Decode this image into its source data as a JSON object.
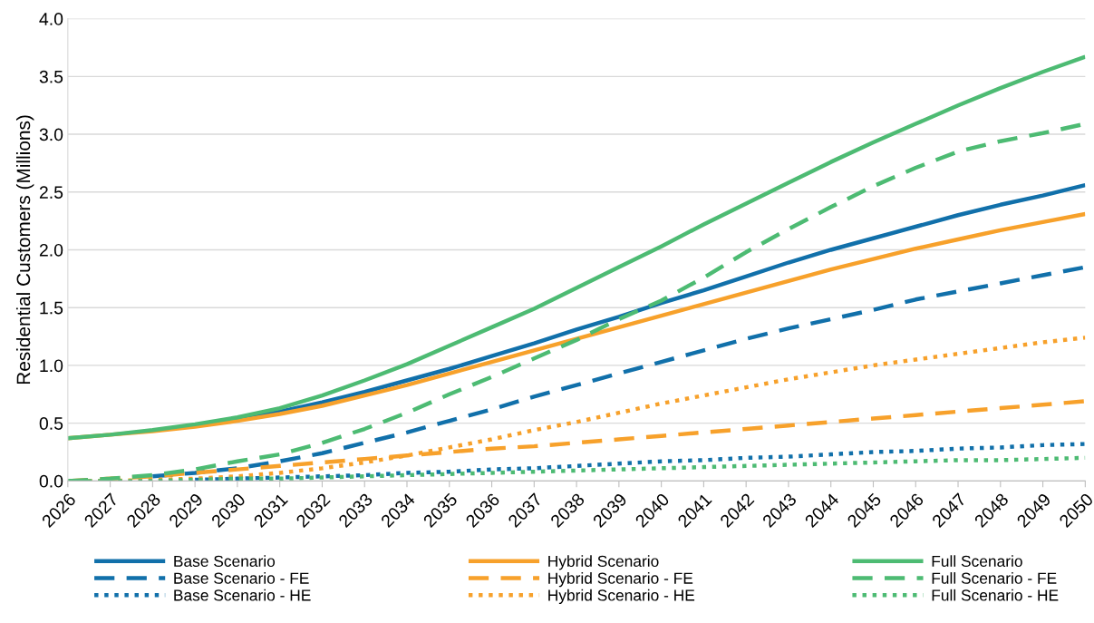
{
  "chart_data": {
    "type": "line",
    "ylabel": "Residential Customers (Millions)",
    "categories": [
      "2026",
      "2027",
      "2028",
      "2029",
      "2030",
      "2031",
      "2032",
      "2033",
      "2034",
      "2035",
      "2036",
      "2037",
      "2038",
      "2039",
      "2040",
      "2041",
      "2042",
      "2043",
      "2044",
      "2045",
      "2046",
      "2047",
      "2048",
      "2049",
      "2050"
    ],
    "ylim": [
      0,
      4
    ],
    "yticks": [
      {
        "value": 0,
        "label": "0.0"
      },
      {
        "value": 0.5,
        "label": "0.5"
      },
      {
        "value": 1,
        "label": "1.0"
      },
      {
        "value": 1.5,
        "label": "1.5"
      },
      {
        "value": 2,
        "label": "2.0"
      },
      {
        "value": 2.5,
        "label": "2.5"
      },
      {
        "value": 3,
        "label": "3.0"
      },
      {
        "value": 3.5,
        "label": "3.5"
      },
      {
        "value": 4,
        "label": "4.0"
      }
    ],
    "grid": "y",
    "legend": "bottom",
    "marker": "none",
    "series": [
      {
        "name": "Base Scenario",
        "color": "#1170aa",
        "line_style": "solid",
        "values": [
          null,
          null,
          null,
          0.48,
          0.53,
          0.6,
          0.68,
          0.77,
          0.87,
          0.97,
          1.08,
          1.19,
          1.31,
          1.42,
          1.54,
          1.65,
          1.77,
          1.89,
          2.0,
          2.1,
          2.2,
          2.3,
          2.39,
          2.47,
          2.56
        ]
      },
      {
        "name": "Base Scenario - FE",
        "color": "#1170aa",
        "line_style": "dashed",
        "values": [
          null,
          null,
          0.04,
          0.07,
          0.11,
          0.17,
          0.24,
          0.33,
          0.42,
          0.52,
          0.62,
          0.73,
          0.83,
          0.93,
          1.03,
          1.13,
          1.23,
          1.32,
          1.4,
          1.48,
          1.57,
          1.64,
          1.71,
          1.78,
          1.85
        ]
      },
      {
        "name": "Base Scenario - HE",
        "color": "#1170aa",
        "line_style": "dotted",
        "values": [
          null,
          null,
          null,
          0.01,
          0.02,
          0.03,
          0.04,
          0.05,
          0.07,
          0.08,
          0.1,
          0.11,
          0.13,
          0.15,
          0.17,
          0.18,
          0.2,
          0.21,
          0.23,
          0.25,
          0.26,
          0.28,
          0.29,
          0.31,
          0.32
        ]
      },
      {
        "name": "Hybrid Scenario",
        "color": "#f7a12b",
        "line_style": "solid",
        "values": [
          0.37,
          0.4,
          0.43,
          0.47,
          0.52,
          0.58,
          0.65,
          0.74,
          0.83,
          0.93,
          1.03,
          1.13,
          1.23,
          1.33,
          1.43,
          1.53,
          1.63,
          1.73,
          1.83,
          1.92,
          2.01,
          2.09,
          2.17,
          2.24,
          2.31
        ]
      },
      {
        "name": "Hybrid Scenario - FE",
        "color": "#f7a12b",
        "line_style": "dashed",
        "values": [
          0,
          0.02,
          0.04,
          0.07,
          0.1,
          0.13,
          0.16,
          0.19,
          0.22,
          0.25,
          0.28,
          0.3,
          0.33,
          0.36,
          0.39,
          0.42,
          0.45,
          0.48,
          0.51,
          0.54,
          0.57,
          0.6,
          0.63,
          0.66,
          0.69
        ]
      },
      {
        "name": "Hybrid Scenario - HE",
        "color": "#f7a12b",
        "line_style": "dotted",
        "values": [
          0,
          0,
          0.01,
          0.02,
          0.04,
          0.07,
          0.11,
          0.16,
          0.22,
          0.29,
          0.36,
          0.44,
          0.51,
          0.59,
          0.67,
          0.74,
          0.81,
          0.88,
          0.94,
          1.0,
          1.05,
          1.1,
          1.15,
          1.2,
          1.24
        ]
      },
      {
        "name": "Full Scenario",
        "color": "#4dbb73",
        "line_style": "solid",
        "values": [
          0.37,
          0.4,
          0.44,
          0.49,
          0.55,
          0.63,
          0.74,
          0.87,
          1.01,
          1.17,
          1.33,
          1.49,
          1.67,
          1.85,
          2.03,
          2.22,
          2.4,
          2.58,
          2.76,
          2.93,
          3.09,
          3.25,
          3.4,
          3.54,
          3.67
        ]
      },
      {
        "name": "Full Scenario - FE",
        "color": "#4dbb73",
        "line_style": "dashed",
        "values": [
          0,
          0.02,
          0.05,
          0.1,
          0.17,
          0.23,
          0.33,
          0.45,
          0.59,
          0.75,
          0.9,
          1.06,
          1.22,
          1.4,
          1.56,
          1.76,
          1.98,
          2.18,
          2.37,
          2.55,
          2.71,
          2.85,
          2.94,
          3.01,
          3.09
        ]
      },
      {
        "name": "Full Scenario - HE",
        "color": "#4dbb73",
        "line_style": "dotted",
        "values": [
          0,
          0,
          0,
          0.01,
          0.02,
          0.02,
          0.03,
          0.04,
          0.05,
          0.06,
          0.07,
          0.08,
          0.09,
          0.1,
          0.11,
          0.12,
          0.13,
          0.14,
          0.15,
          0.16,
          0.17,
          0.18,
          0.18,
          0.19,
          0.2
        ]
      }
    ]
  }
}
